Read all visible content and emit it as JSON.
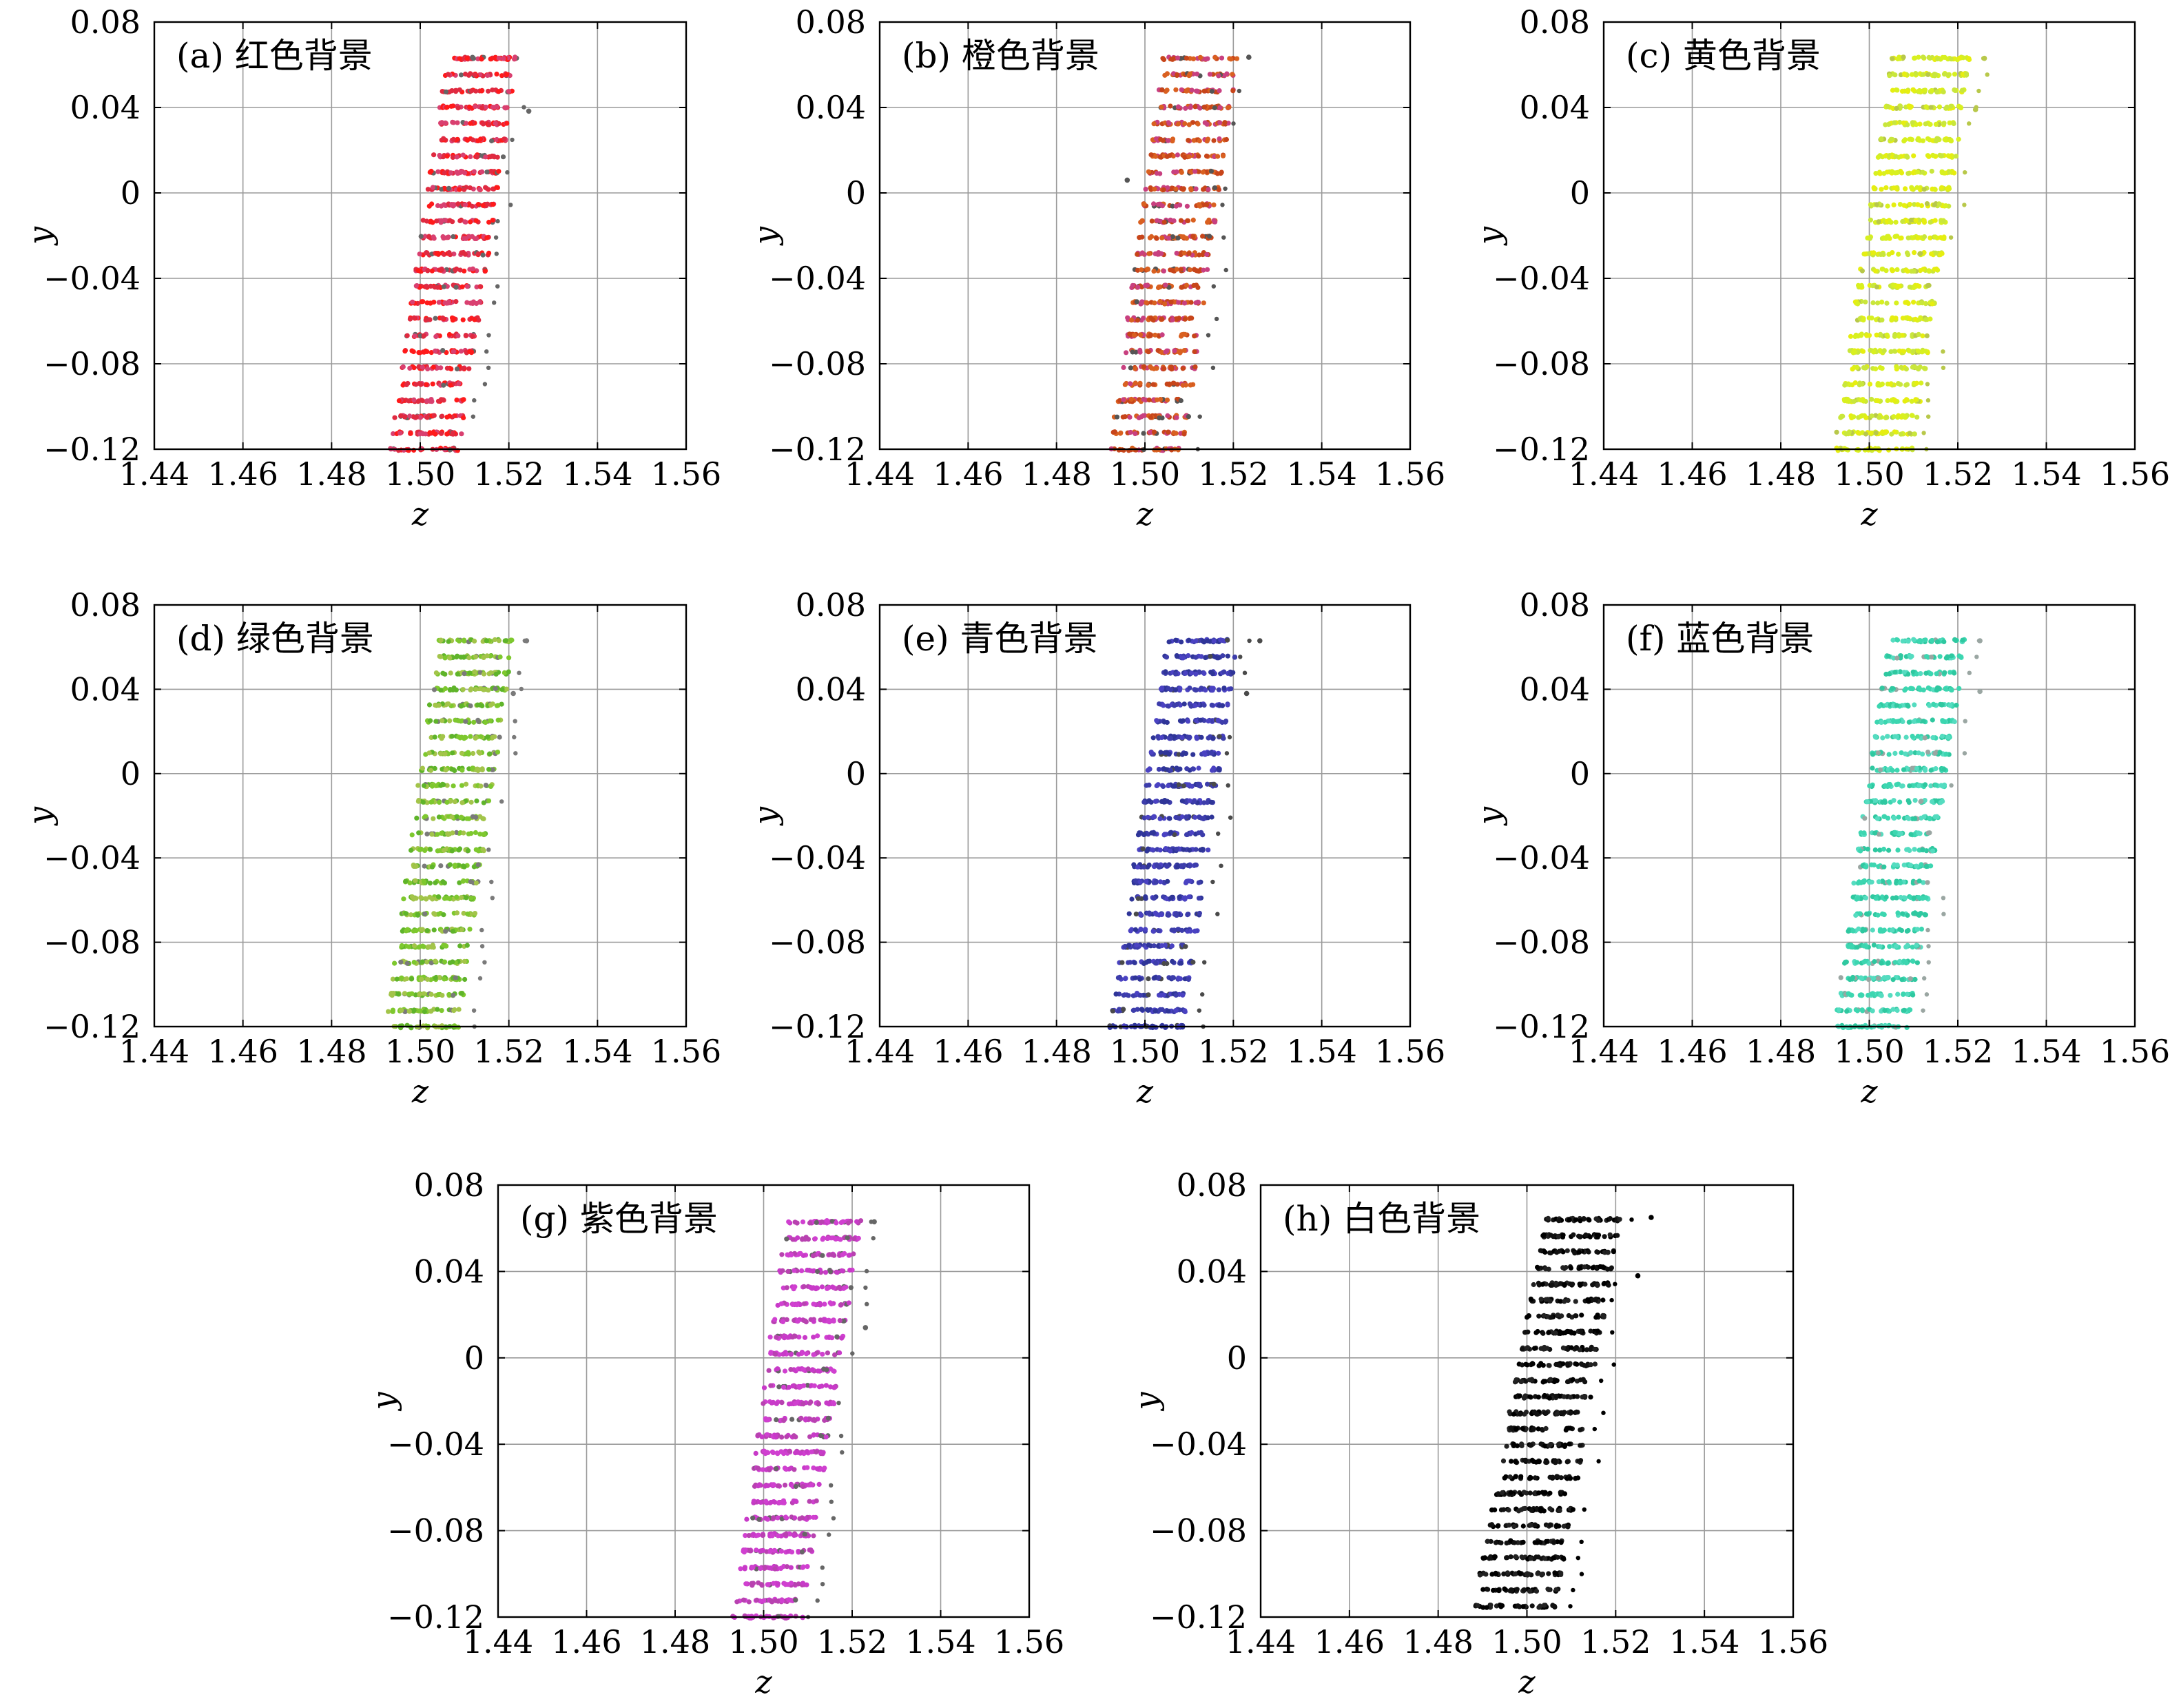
{
  "chart_data": [
    {
      "type": "scatter",
      "panel_label": "(a) 红色背景",
      "xlabel": "z",
      "ylabel": "y",
      "xlim": [
        1.44,
        1.56
      ],
      "ylim": [
        -0.12,
        0.08
      ],
      "xticks": [
        "1.44",
        "1.46",
        "1.48",
        "1.50",
        "1.52",
        "1.54",
        "1.56"
      ],
      "yticks": [
        "0.08",
        "0.04",
        "0",
        "−0.04",
        "−0.08",
        "−0.12"
      ],
      "grid": true,
      "colors": [
        "#e02a40",
        "#d94070",
        "#ff1a1a"
      ],
      "stray_color": "#666666",
      "points_pattern": {
        "row_y_step": 0.0075,
        "rows": [
          {
            "y": 0.063,
            "z_min": 1.506,
            "z_max": 1.522
          },
          {
            "y": -0.12,
            "z_min": 1.493,
            "z_max": 1.509
          }
        ],
        "stray_points": [
          [
            1.5245,
            0.0383
          ],
          [
            1.512,
            0.063
          ]
        ]
      }
    },
    {
      "type": "scatter",
      "panel_label": "(b) 橙色背景",
      "xlabel": "z",
      "ylabel": "y",
      "xlim": [
        1.44,
        1.56
      ],
      "ylim": [
        -0.12,
        0.08
      ],
      "xticks": [
        "1.44",
        "1.46",
        "1.48",
        "1.50",
        "1.52",
        "1.54",
        "1.56"
      ],
      "yticks": [
        "0.08",
        "0.04",
        "0",
        "−0.04",
        "−0.08",
        "−0.12"
      ],
      "grid": true,
      "colors": [
        "#c7451a",
        "#d96020",
        "#c84080"
      ],
      "stray_color": "#555555",
      "points_pattern": {
        "row_y_step": 0.0075,
        "rows": [
          {
            "y": 0.063,
            "z_min": 1.504,
            "z_max": 1.521
          },
          {
            "y": -0.12,
            "z_min": 1.492,
            "z_max": 1.509
          }
        ],
        "stray_points": [
          [
            1.5235,
            0.0635
          ],
          [
            1.496,
            0.006
          ]
        ]
      }
    },
    {
      "type": "scatter",
      "panel_label": "(c) 黄色背景",
      "xlabel": "z",
      "ylabel": "y",
      "xlim": [
        1.44,
        1.56
      ],
      "ylim": [
        -0.12,
        0.08
      ],
      "xticks": [
        "1.44",
        "1.46",
        "1.48",
        "1.50",
        "1.52",
        "1.54",
        "1.56"
      ],
      "yticks": [
        "0.08",
        "0.04",
        "0",
        "−0.04",
        "−0.08",
        "−0.12"
      ],
      "grid": true,
      "colors": [
        "#d8f020",
        "#e6ee10",
        "#c9e63c"
      ],
      "stray_color": "#b8c84a",
      "points_pattern": {
        "row_y_step": 0.0075,
        "rows": [
          {
            "y": 0.063,
            "z_min": 1.505,
            "z_max": 1.523
          },
          {
            "y": -0.12,
            "z_min": 1.492,
            "z_max": 1.51
          }
        ],
        "stray_points": [
          [
            1.526,
            0.063
          ],
          [
            1.524,
            0.039
          ]
        ]
      }
    },
    {
      "type": "scatter",
      "panel_label": "(d) 绿色背景",
      "xlabel": "z",
      "ylabel": "y",
      "xlim": [
        1.44,
        1.56
      ],
      "ylim": [
        -0.12,
        0.08
      ],
      "xticks": [
        "1.44",
        "1.46",
        "1.48",
        "1.50",
        "1.52",
        "1.54",
        "1.56"
      ],
      "yticks": [
        "0.08",
        "0.04",
        "0",
        "−0.04",
        "−0.08",
        "−0.12"
      ],
      "grid": true,
      "colors": [
        "#7ec82e",
        "#a3c44a",
        "#5fb42a"
      ],
      "stray_color": "#7a7a7a",
      "points_pattern": {
        "row_y_step": 0.0075,
        "rows": [
          {
            "y": 0.063,
            "z_min": 1.504,
            "z_max": 1.521
          },
          {
            "y": -0.12,
            "z_min": 1.492,
            "z_max": 1.509
          }
        ],
        "stray_points": [
          [
            1.524,
            0.063
          ],
          [
            1.521,
            0.038
          ]
        ]
      }
    },
    {
      "type": "scatter",
      "panel_label": "(e) 青色背景",
      "xlabel": "z",
      "ylabel": "y",
      "xlim": [
        1.44,
        1.56
      ],
      "ylim": [
        -0.12,
        0.08
      ],
      "xticks": [
        "1.44",
        "1.46",
        "1.48",
        "1.50",
        "1.52",
        "1.54",
        "1.56"
      ],
      "yticks": [
        "0.08",
        "0.04",
        "0",
        "−0.04",
        "−0.08",
        "−0.12"
      ],
      "grid": true,
      "colors": [
        "#3d3dab",
        "#4a42c2",
        "#2f3598"
      ],
      "stray_color": "#4a4a4a",
      "points_pattern": {
        "row_y_step": 0.0075,
        "rows": [
          {
            "y": 0.063,
            "z_min": 1.505,
            "z_max": 1.521
          },
          {
            "y": -0.12,
            "z_min": 1.492,
            "z_max": 1.509
          }
        ],
        "stray_points": [
          [
            1.526,
            0.063
          ],
          [
            1.523,
            0.038
          ]
        ]
      }
    },
    {
      "type": "scatter",
      "panel_label": "(f) 蓝色背景",
      "xlabel": "z",
      "ylabel": "y",
      "xlim": [
        1.44,
        1.56
      ],
      "ylim": [
        -0.12,
        0.08
      ],
      "xticks": [
        "1.44",
        "1.46",
        "1.48",
        "1.50",
        "1.52",
        "1.54",
        "1.56"
      ],
      "yticks": [
        "0.08",
        "0.04",
        "0",
        "−0.04",
        "−0.08",
        "−0.12"
      ],
      "grid": true,
      "colors": [
        "#3cd6b0",
        "#55dcc0",
        "#2fc8a0"
      ],
      "stray_color": "#9aa6a2",
      "points_pattern": {
        "row_y_step": 0.0075,
        "rows": [
          {
            "y": 0.063,
            "z_min": 1.504,
            "z_max": 1.522
          },
          {
            "y": -0.12,
            "z_min": 1.492,
            "z_max": 1.509
          }
        ],
        "stray_points": [
          [
            1.525,
            0.063
          ],
          [
            1.525,
            0.039
          ]
        ]
      }
    },
    {
      "type": "scatter",
      "panel_label": "(g) 紫色背景",
      "xlabel": "z",
      "ylabel": "y",
      "xlim": [
        1.44,
        1.56
      ],
      "ylim": [
        -0.12,
        0.08
      ],
      "xticks": [
        "1.44",
        "1.46",
        "1.48",
        "1.50",
        "1.52",
        "1.54",
        "1.56"
      ],
      "yticks": [
        "0.08",
        "0.04",
        "0",
        "−0.04",
        "−0.08",
        "−0.12"
      ],
      "grid": true,
      "colors": [
        "#c83ac8",
        "#d040d0",
        "#b842b0"
      ],
      "stray_color": "#666666",
      "points_pattern": {
        "row_y_step": 0.0075,
        "rows": [
          {
            "y": 0.063,
            "z_min": 1.505,
            "z_max": 1.522
          },
          {
            "y": -0.12,
            "z_min": 1.493,
            "z_max": 1.509
          }
        ],
        "stray_points": [
          [
            1.525,
            0.063
          ],
          [
            1.523,
            0.014
          ]
        ]
      }
    },
    {
      "type": "scatter",
      "panel_label": "(h) 白色背景",
      "xlabel": "z",
      "ylabel": "y",
      "xlim": [
        1.44,
        1.56
      ],
      "ylim": [
        -0.12,
        0.08
      ],
      "xticks": [
        "1.44",
        "1.46",
        "1.48",
        "1.50",
        "1.52",
        "1.54",
        "1.56"
      ],
      "yticks": [
        "0.08",
        "0.04",
        "0",
        "−0.04",
        "−0.08",
        "−0.12"
      ],
      "grid": true,
      "colors": [
        "#111111",
        "#000000",
        "#222222"
      ],
      "stray_color": "#000000",
      "points_pattern": {
        "row_y_step": 0.0075,
        "rows": [
          {
            "y": 0.064,
            "z_min": 1.504,
            "z_max": 1.521
          },
          {
            "y": -0.115,
            "z_min": 1.488,
            "z_max": 1.507
          }
        ],
        "stray_points": [
          [
            1.528,
            0.065
          ],
          [
            1.525,
            0.038
          ]
        ]
      }
    }
  ]
}
